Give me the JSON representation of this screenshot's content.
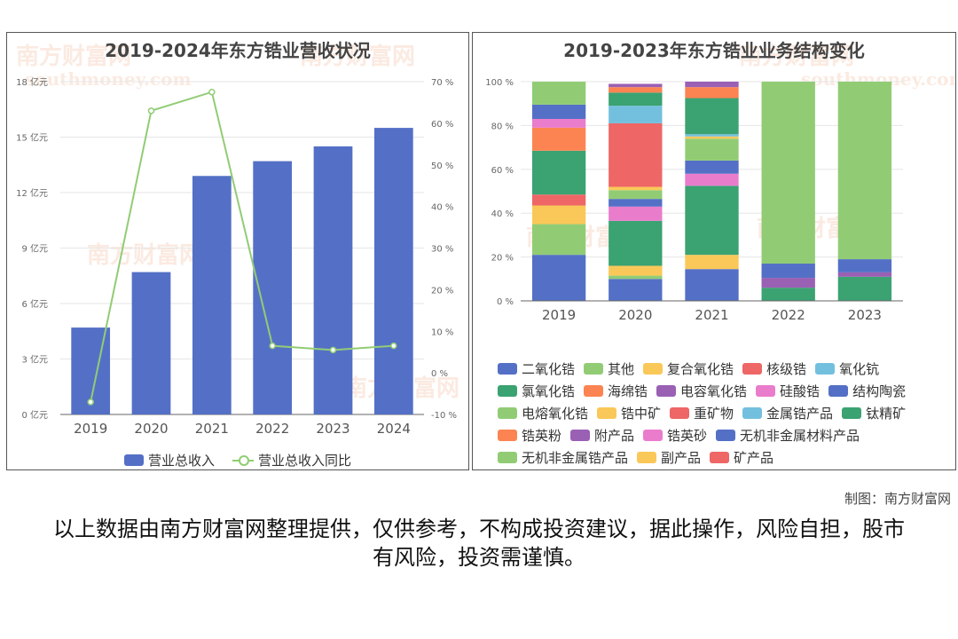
{
  "left": {
    "title": "2019-2024年东方锆业营收状况",
    "watermark": "南方财富网",
    "watermark_sub": "southmoney.com",
    "left_ticks": [
      "0 亿元",
      "3 亿元",
      "6 亿元",
      "9 亿元",
      "12 亿元",
      "15 亿元",
      "18 亿元"
    ],
    "right_ticks": [
      "-10 %",
      "0 %",
      "10 %",
      "20 %",
      "30 %",
      "40 %",
      "50 %",
      "60 %",
      "70 %"
    ]
  },
  "right": {
    "title": "2019-2023年东方锆业业务结构变化",
    "y_ticks": [
      "0 %",
      "20 %",
      "40 %",
      "60 %",
      "80 %",
      "100 %"
    ]
  },
  "colors": {
    "blue": "#5470c6",
    "green": "#91cc75",
    "yellow": "#fac858",
    "red": "#ee6666",
    "cyan": "#73c0de",
    "teal": "#3ba272",
    "orange": "#fc8452",
    "purple": "#9a60b4",
    "pink": "#ea7ccc"
  },
  "chart_data": [
    {
      "type": "bar",
      "title": "2019-2024年东方锆业营收状况",
      "categories": [
        "2019",
        "2020",
        "2021",
        "2022",
        "2023",
        "2024"
      ],
      "ylim": [
        0,
        18
      ],
      "y2lim": [
        -10,
        70
      ],
      "series": [
        {
          "name": "营业总收入",
          "type": "bar",
          "axis": "left",
          "unit": "亿元",
          "color": "#5470c6",
          "values": [
            4.7,
            7.7,
            12.9,
            13.7,
            14.5,
            15.5
          ]
        },
        {
          "name": "营业总收入同比",
          "type": "line",
          "axis": "right",
          "unit": "%",
          "color": "#91cc75",
          "values": [
            -7,
            63,
            67.5,
            6.5,
            5.5,
            6.5
          ]
        }
      ],
      "legend": "bottom"
    },
    {
      "type": "bar",
      "stacked": true,
      "title": "2019-2023年东方锆业业务结构变化",
      "categories": [
        "2019",
        "2020",
        "2021",
        "2022",
        "2023"
      ],
      "ylim": [
        0,
        100
      ],
      "unit": "%",
      "legend": "bottom",
      "series": [
        {
          "name": "二氧化锆",
          "color": "#5470c6",
          "values": [
            21,
            10,
            14.5,
            0,
            0
          ]
        },
        {
          "name": "其他",
          "color": "#91cc75",
          "values": [
            0,
            1.5,
            0,
            0,
            0
          ]
        },
        {
          "name": "复合氧化锆",
          "color": "#fac858",
          "values": [
            0,
            4.5,
            6.5,
            0,
            0
          ]
        },
        {
          "name": "核级锆",
          "color": "#ee6666",
          "values": [
            0,
            0,
            0,
            0,
            0
          ]
        },
        {
          "name": "氧化钪",
          "color": "#73c0de",
          "values": [
            0,
            0,
            0,
            0,
            0
          ]
        },
        {
          "name": "氯氧化锆",
          "color": "#3ba272",
          "values": [
            0,
            20.5,
            31.5,
            0,
            0
          ]
        },
        {
          "name": "海绵锆",
          "color": "#fc8452",
          "values": [
            0,
            0,
            0,
            0,
            0
          ]
        },
        {
          "name": "电容氧化锆",
          "color": "#9a60b4",
          "values": [
            0,
            0,
            0,
            0,
            0
          ]
        },
        {
          "name": "硅酸锆",
          "color": "#ea7ccc",
          "values": [
            0,
            6.5,
            5.5,
            0,
            0
          ]
        },
        {
          "name": "结构陶瓷",
          "color": "#5470c6",
          "values": [
            0,
            3.5,
            6,
            0,
            0
          ]
        },
        {
          "name": "电熔氧化锆",
          "color": "#91cc75",
          "values": [
            14,
            4,
            10,
            0,
            0
          ]
        },
        {
          "name": "锆中矿",
          "color": "#fac858",
          "values": [
            8.5,
            1.5,
            1,
            0,
            0
          ]
        },
        {
          "name": "重矿物",
          "color": "#ee6666",
          "values": [
            5,
            29,
            0,
            0,
            0
          ]
        },
        {
          "name": "金属锆产品",
          "color": "#73c0de",
          "values": [
            0,
            8,
            1,
            0,
            0
          ]
        },
        {
          "name": "钛精矿",
          "color": "#3ba272",
          "values": [
            20,
            6,
            16.5,
            6,
            11
          ]
        },
        {
          "name": "锆英粉",
          "color": "#fc8452",
          "values": [
            10.5,
            2.5,
            5,
            0,
            0
          ]
        },
        {
          "name": "附产品",
          "color": "#9a60b4",
          "values": [
            0,
            1.5,
            2.5,
            4.5,
            2
          ]
        },
        {
          "name": "锆英砂",
          "color": "#ea7ccc",
          "values": [
            4,
            0,
            0,
            0,
            0
          ]
        },
        {
          "name": "无机非金属材料产品",
          "color": "#5470c6",
          "values": [
            6.5,
            0,
            0,
            6.5,
            6
          ]
        },
        {
          "name": "无机非金属锆产品",
          "color": "#91cc75",
          "values": [
            10.5,
            0,
            0,
            83,
            81
          ]
        },
        {
          "name": "副产品",
          "color": "#fac858",
          "values": [
            0,
            0,
            0,
            0,
            0
          ]
        },
        {
          "name": "矿产品",
          "color": "#ee6666",
          "values": [
            0,
            0,
            0,
            0,
            0
          ]
        }
      ]
    }
  ],
  "footer": {
    "credit": "制图：南方财富网",
    "disclaimer": "以上数据由南方财富网整理提供，仅供参考，不构成投资建议，据此操作，风险自担，股市有风险，投资需谨慎。"
  }
}
